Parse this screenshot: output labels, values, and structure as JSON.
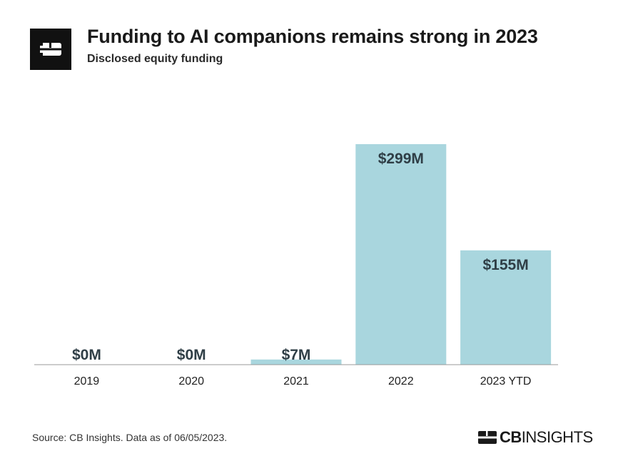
{
  "header": {
    "title": "Funding to AI companions remains strong in 2023",
    "subtitle": "Disclosed equity funding",
    "logo_icon": "cb-insights-logo-icon"
  },
  "footer": {
    "source": "Source: CB Insights. Data as of 06/05/2023.",
    "brand_bold": "CB",
    "brand_light": "INSIGHTS",
    "brand_icon": "cb-insights-logo-icon"
  },
  "colors": {
    "bar": "#a9d6de",
    "baseline": "#999999",
    "label": "#2f3e46",
    "logo": "#111111"
  },
  "chart_data": {
    "type": "bar",
    "title": "Funding to AI companions remains strong in 2023",
    "subtitle": "Disclosed equity funding",
    "xlabel": "",
    "ylabel": "",
    "categories": [
      "2019",
      "2020",
      "2021",
      "2022",
      "2023 YTD"
    ],
    "values": [
      0,
      0,
      7,
      299,
      155
    ],
    "data_labels": [
      "$0M",
      "$0M",
      "$7M",
      "$299M",
      "$155M"
    ],
    "unit": "$M",
    "ylim": [
      0,
      299
    ],
    "grid": false,
    "legend": "none"
  }
}
